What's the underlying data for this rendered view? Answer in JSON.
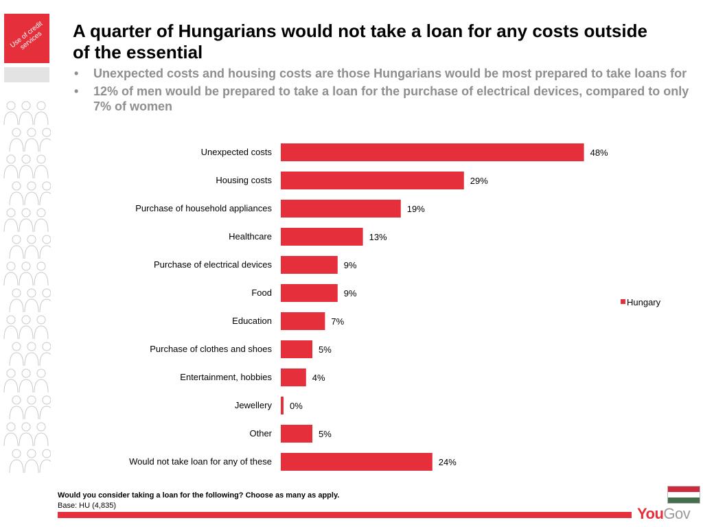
{
  "section_tag": "Use of credit services",
  "title": "A quarter of Hungarians would not take a loan for any costs outside of the essential",
  "bullets": [
    "Unexpected costs and housing costs are those Hungarians would be most prepared to take loans for",
    "12% of men would be prepared to take a loan for the purchase of electrical devices, compared to only 7% of women"
  ],
  "chart_data": {
    "type": "bar",
    "orientation": "horizontal",
    "categories": [
      "Unexpected costs",
      "Housing costs",
      "Purchase of household appliances",
      "Healthcare",
      "Purchase of electrical devices",
      "Food",
      "Education",
      "Purchase of clothes and shoes",
      "Entertainment, hobbies",
      "Jewellery",
      "Other",
      "Would not take loan for any of these"
    ],
    "series": [
      {
        "name": "Hungary",
        "values": [
          48,
          29,
          19,
          13,
          9,
          9,
          7,
          5,
          4,
          0,
          5,
          24
        ],
        "labels": [
          "48%",
          "29%",
          "19%",
          "13%",
          "9%",
          "9%",
          "7%",
          "5%",
          "4%",
          "0%",
          "5%",
          "24%"
        ],
        "color": "#e5303b"
      }
    ],
    "xlim": [
      0,
      50
    ],
    "legend_position": "right",
    "grid": false
  },
  "footer": {
    "question": "Would you consider taking a loan for the following? Choose as many as apply.",
    "base": "Base: HU (4,835)"
  },
  "flag_colors": [
    "#cd2a3e",
    "#ffffff",
    "#436f4d"
  ],
  "logo": {
    "you": "You",
    "gov": "Gov"
  },
  "colors": {
    "accent": "#e5303b",
    "subtitle": "#8e8e8e"
  }
}
